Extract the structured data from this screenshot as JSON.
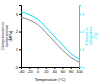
{
  "chart_data": {
    "type": "line",
    "xlabel": "Temperature (°C)",
    "ylabel": "Compression or\ncompressive\n(MPa)",
    "y2label": "Flexion or\nelongation\n(%)",
    "x": [
      -40,
      -30,
      -20,
      -10,
      0,
      10,
      20,
      30,
      40,
      50,
      60,
      70,
      80,
      90,
      100
    ],
    "series": [
      {
        "color": "#888888",
        "values": [
          2.8,
          2.75,
          2.65,
          2.55,
          2.4,
          2.2,
          1.95,
          1.7,
          1.45,
          1.2,
          0.95,
          0.75,
          0.55,
          0.4,
          0.28
        ]
      },
      {
        "color": "#00ddee",
        "axis": "y2",
        "values": [
          3.1,
          3.05,
          2.95,
          2.85,
          2.7,
          2.5,
          2.25,
          2.0,
          1.75,
          1.5,
          1.25,
          1.0,
          0.78,
          0.6,
          0.45
        ]
      }
    ],
    "xlim": [
      -40,
      100
    ],
    "xticks": [
      -40,
      -20,
      0,
      20,
      40,
      60,
      80,
      100
    ],
    "ylim": [
      0,
      3.5
    ],
    "yticks": [
      0,
      1,
      2,
      3
    ],
    "y2lim": [
      0,
      3.5
    ],
    "y2ticks": [
      0,
      1,
      2,
      3
    ],
    "grid": false
  }
}
